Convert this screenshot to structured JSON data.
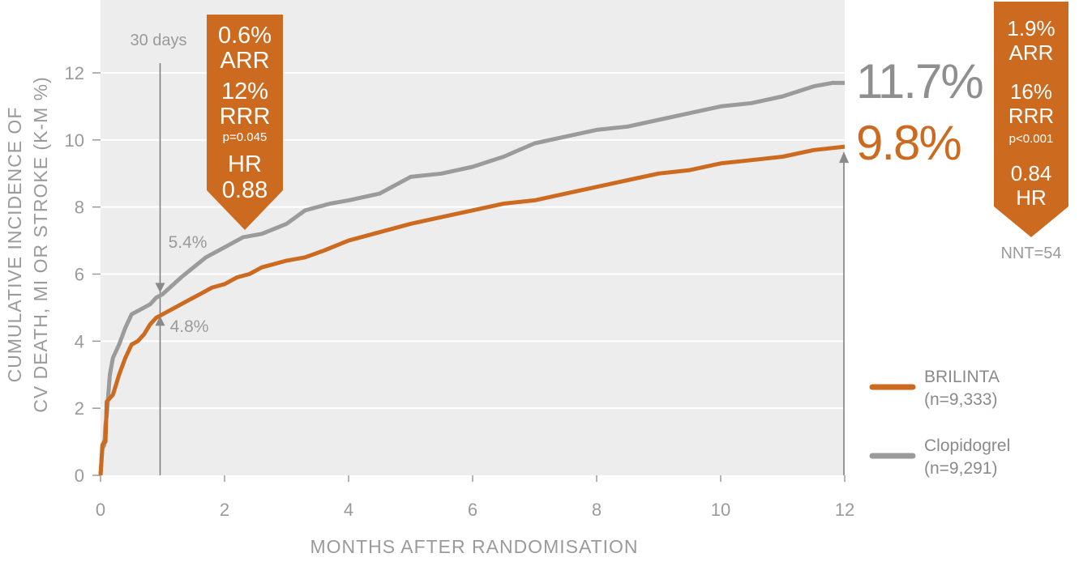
{
  "colors": {
    "brilinta": "#cc6a1f",
    "clopidogrel": "#9b9b9b",
    "plot_bg": "#ededed",
    "grid": "#ffffff",
    "text": "#9a9a9a"
  },
  "chart_data": {
    "type": "line",
    "xlabel": "MONTHS AFTER RANDOMISATION",
    "ylabel_lines": [
      "CUMULATIVE INCIDENCE OF",
      "CV DEATH, MI OR STROKE (K-M %)"
    ],
    "xlim": [
      0,
      12
    ],
    "ylim": [
      0,
      12
    ],
    "xticks": [
      0,
      2,
      4,
      6,
      8,
      10,
      12
    ],
    "yticks": [
      0,
      2,
      4,
      6,
      8,
      10,
      12
    ],
    "grid": true,
    "legend_position": "bottom-right",
    "series": [
      {
        "key": "brilinta",
        "name": "BRILINTA",
        "subname": "(n=9,333)",
        "x": [
          0,
          0.03,
          0.06,
          0.08,
          0.1,
          0.15,
          0.2,
          0.3,
          0.4,
          0.5,
          0.6,
          0.7,
          0.8,
          0.9,
          1.0,
          1.2,
          1.4,
          1.6,
          1.8,
          2.0,
          2.2,
          2.4,
          2.6,
          2.8,
          3.0,
          3.3,
          3.6,
          4.0,
          4.4,
          5.0,
          5.5,
          6.0,
          6.5,
          7.0,
          7.5,
          8.0,
          8.5,
          9.0,
          9.5,
          10.0,
          10.5,
          11.0,
          11.5,
          12.0
        ],
        "y": [
          0,
          0.9,
          1.0,
          1.0,
          2.2,
          2.3,
          2.4,
          3.0,
          3.5,
          3.9,
          4.0,
          4.2,
          4.5,
          4.7,
          4.8,
          5.0,
          5.2,
          5.4,
          5.6,
          5.7,
          5.9,
          6.0,
          6.2,
          6.3,
          6.4,
          6.5,
          6.7,
          7.0,
          7.2,
          7.5,
          7.7,
          7.9,
          8.1,
          8.2,
          8.4,
          8.6,
          8.8,
          9.0,
          9.1,
          9.3,
          9.4,
          9.5,
          9.7,
          9.8
        ],
        "end_label": "9.8%",
        "day30_label": "4.8%"
      },
      {
        "key": "clopidogrel",
        "name": "Clopidogrel",
        "subname": "(n=9,291)",
        "x": [
          0,
          0.03,
          0.06,
          0.08,
          0.1,
          0.15,
          0.2,
          0.3,
          0.4,
          0.5,
          0.6,
          0.7,
          0.8,
          0.9,
          1.0,
          1.3,
          1.7,
          2.0,
          2.3,
          2.6,
          3.0,
          3.3,
          3.7,
          4.0,
          4.5,
          5.0,
          5.5,
          6.0,
          6.5,
          7.0,
          7.5,
          8.0,
          8.5,
          9.0,
          9.5,
          10.0,
          10.5,
          11.0,
          11.5,
          11.8,
          12.0
        ],
        "y": [
          0,
          0.8,
          0.9,
          1.5,
          1.8,
          3.0,
          3.5,
          3.9,
          4.4,
          4.8,
          4.9,
          5.0,
          5.1,
          5.3,
          5.4,
          5.9,
          6.5,
          6.8,
          7.1,
          7.2,
          7.5,
          7.9,
          8.1,
          8.2,
          8.4,
          8.9,
          9.0,
          9.2,
          9.5,
          9.9,
          10.1,
          10.3,
          10.4,
          10.6,
          10.8,
          11.0,
          11.1,
          11.3,
          11.6,
          11.7,
          11.7
        ],
        "end_label": "11.7%",
        "day30_label": "5.4%"
      }
    ],
    "annotations": {
      "day30": {
        "label": "30 days",
        "x": 1.0
      },
      "box_30day": {
        "lines": [
          "0.6%",
          "ARR",
          "12%",
          "RRR",
          "p=0.045",
          "HR",
          "0.88"
        ]
      },
      "box_12month": {
        "lines": [
          "1.9%",
          "ARR",
          "16%",
          "RRR",
          "p<0.001",
          "0.84",
          "HR"
        ]
      },
      "nnt": "NNT=54"
    }
  }
}
